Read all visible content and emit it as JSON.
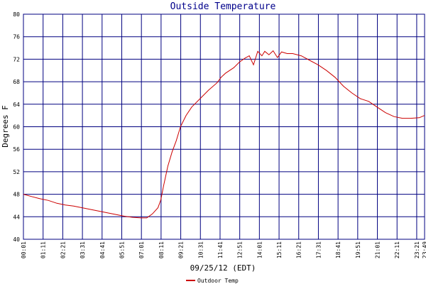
{
  "chart_data": {
    "type": "line",
    "title": "Outside Temperature",
    "xlabel": "09/25/12 (EDT)",
    "ylabel": "Degrees F",
    "ylim": [
      40,
      80
    ],
    "yticks": [
      40,
      44,
      48,
      52,
      56,
      60,
      64,
      68,
      72,
      76,
      80
    ],
    "xticks": [
      "00:01",
      "01:11",
      "02:21",
      "03:31",
      "04:41",
      "05:51",
      "07:01",
      "08:11",
      "09:21",
      "10:31",
      "11:41",
      "12:51",
      "14:01",
      "15:11",
      "16:21",
      "17:31",
      "18:41",
      "19:51",
      "21:01",
      "22:11",
      "23:21",
      "23:49"
    ],
    "grid": true,
    "legend_position": "bottom-left",
    "colors": {
      "series": "#cc0000",
      "grid": "#000080",
      "title": "#00008b"
    },
    "series": [
      {
        "name": "Outdoor Temp",
        "points": [
          [
            "00:01",
            48.0
          ],
          [
            "00:30",
            47.6
          ],
          [
            "01:00",
            47.2
          ],
          [
            "01:30",
            46.9
          ],
          [
            "02:00",
            46.4
          ],
          [
            "02:30",
            46.1
          ],
          [
            "03:00",
            45.9
          ],
          [
            "03:30",
            45.6
          ],
          [
            "04:00",
            45.3
          ],
          [
            "04:30",
            45.0
          ],
          [
            "05:00",
            44.7
          ],
          [
            "05:30",
            44.4
          ],
          [
            "06:00",
            44.1
          ],
          [
            "06:30",
            43.9
          ],
          [
            "07:00",
            43.8
          ],
          [
            "07:20",
            43.8
          ],
          [
            "07:40",
            44.5
          ],
          [
            "08:00",
            45.6
          ],
          [
            "08:10",
            47.0
          ],
          [
            "08:20",
            49.5
          ],
          [
            "08:35",
            53.0
          ],
          [
            "08:50",
            55.5
          ],
          [
            "09:05",
            57.5
          ],
          [
            "09:20",
            60.0
          ],
          [
            "09:40",
            62.0
          ],
          [
            "10:00",
            63.5
          ],
          [
            "10:30",
            65.0
          ],
          [
            "11:00",
            66.5
          ],
          [
            "11:30",
            67.8
          ],
          [
            "11:45",
            68.8
          ],
          [
            "12:00",
            69.5
          ],
          [
            "12:30",
            70.5
          ],
          [
            "12:50",
            71.5
          ],
          [
            "13:10",
            72.2
          ],
          [
            "13:25",
            72.6
          ],
          [
            "13:40",
            71.0
          ],
          [
            "13:55",
            73.4
          ],
          [
            "14:10",
            72.6
          ],
          [
            "14:20",
            73.4
          ],
          [
            "14:35",
            72.8
          ],
          [
            "14:50",
            73.5
          ],
          [
            "15:05",
            72.3
          ],
          [
            "15:20",
            73.3
          ],
          [
            "15:40",
            73.0
          ],
          [
            "16:00",
            73.0
          ],
          [
            "16:30",
            72.6
          ],
          [
            "17:00",
            71.8
          ],
          [
            "17:30",
            71.0
          ],
          [
            "18:00",
            70.0
          ],
          [
            "18:30",
            68.8
          ],
          [
            "19:00",
            67.2
          ],
          [
            "19:30",
            66.0
          ],
          [
            "20:00",
            65.0
          ],
          [
            "20:30",
            64.5
          ],
          [
            "21:00",
            63.5
          ],
          [
            "21:30",
            62.5
          ],
          [
            "22:00",
            61.8
          ],
          [
            "22:30",
            61.5
          ],
          [
            "23:00",
            61.5
          ],
          [
            "23:30",
            61.6
          ],
          [
            "23:49",
            62.0
          ]
        ]
      }
    ]
  }
}
